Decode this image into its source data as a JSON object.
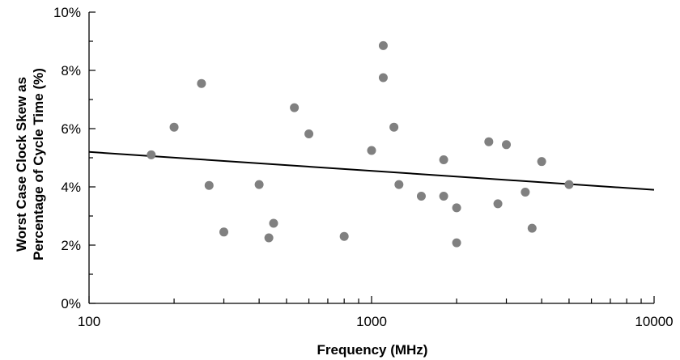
{
  "chart_data": {
    "type": "scatter",
    "title": "",
    "xlabel": "Frequency (MHz)",
    "ylabel_lines": [
      "Worst Case Clock Skew as",
      "Percentage of Cycle Time (%)"
    ],
    "xscale": "log",
    "xlim": [
      100,
      10000
    ],
    "ylim": [
      0,
      10
    ],
    "x_ticks": [
      100,
      1000,
      10000
    ],
    "x_tick_labels": [
      "100",
      "1000",
      "10000"
    ],
    "y_ticks": [
      0,
      2,
      4,
      6,
      8,
      10
    ],
    "y_tick_labels": [
      "0%",
      "2%",
      "4%",
      "6%",
      "8%",
      "10%"
    ],
    "grid": false,
    "legend": "none",
    "series": [
      {
        "kind": "points",
        "color": "#808080",
        "points": [
          {
            "x": 166,
            "y": 5.1
          },
          {
            "x": 200,
            "y": 6.05
          },
          {
            "x": 250,
            "y": 7.55
          },
          {
            "x": 266,
            "y": 4.05
          },
          {
            "x": 300,
            "y": 2.45
          },
          {
            "x": 400,
            "y": 4.08
          },
          {
            "x": 433,
            "y": 2.25
          },
          {
            "x": 450,
            "y": 2.75
          },
          {
            "x": 533,
            "y": 6.72
          },
          {
            "x": 600,
            "y": 5.82
          },
          {
            "x": 800,
            "y": 2.3
          },
          {
            "x": 1000,
            "y": 5.25
          },
          {
            "x": 1100,
            "y": 8.85
          },
          {
            "x": 1100,
            "y": 7.75
          },
          {
            "x": 1200,
            "y": 6.05
          },
          {
            "x": 1250,
            "y": 4.08
          },
          {
            "x": 1500,
            "y": 3.68
          },
          {
            "x": 1800,
            "y": 4.93
          },
          {
            "x": 1800,
            "y": 3.68
          },
          {
            "x": 2000,
            "y": 3.28
          },
          {
            "x": 2000,
            "y": 2.08
          },
          {
            "x": 2600,
            "y": 5.55
          },
          {
            "x": 2800,
            "y": 3.42
          },
          {
            "x": 3000,
            "y": 5.45
          },
          {
            "x": 3500,
            "y": 3.82
          },
          {
            "x": 3700,
            "y": 2.58
          },
          {
            "x": 4000,
            "y": 4.87
          },
          {
            "x": 5000,
            "y": 4.08
          }
        ]
      },
      {
        "kind": "trend-line",
        "color": "#000000",
        "points": [
          {
            "x": 100,
            "y": 5.2
          },
          {
            "x": 10000,
            "y": 3.9
          }
        ]
      }
    ]
  }
}
